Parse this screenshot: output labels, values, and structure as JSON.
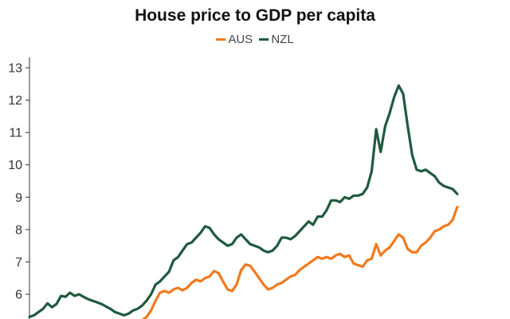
{
  "chart_data": {
    "type": "line",
    "title": "House price to GDP per capita",
    "xlabel": "",
    "ylabel": "",
    "ylim": [
      5.3,
      13.3
    ],
    "yticks": [
      6,
      7,
      8,
      9,
      10,
      11,
      12,
      13
    ],
    "grid": false,
    "legend_position": "top-center",
    "series": [
      {
        "name": "AUS",
        "color": "#f07a1c",
        "points": [
          [
            0.25,
            5.2
          ],
          [
            0.26,
            5.3
          ],
          [
            0.27,
            5.5
          ],
          [
            0.28,
            5.8
          ],
          [
            0.29,
            6.05
          ],
          [
            0.3,
            6.1
          ],
          [
            0.31,
            6.05
          ],
          [
            0.32,
            6.15
          ],
          [
            0.33,
            6.2
          ],
          [
            0.34,
            6.12
          ],
          [
            0.35,
            6.2
          ],
          [
            0.36,
            6.35
          ],
          [
            0.37,
            6.45
          ],
          [
            0.38,
            6.4
          ],
          [
            0.39,
            6.5
          ],
          [
            0.4,
            6.55
          ],
          [
            0.41,
            6.72
          ],
          [
            0.42,
            6.65
          ],
          [
            0.43,
            6.4
          ],
          [
            0.44,
            6.15
          ],
          [
            0.45,
            6.1
          ],
          [
            0.46,
            6.3
          ],
          [
            0.47,
            6.75
          ],
          [
            0.48,
            6.92
          ],
          [
            0.49,
            6.88
          ],
          [
            0.5,
            6.7
          ],
          [
            0.51,
            6.5
          ],
          [
            0.52,
            6.3
          ],
          [
            0.53,
            6.15
          ],
          [
            0.54,
            6.2
          ],
          [
            0.55,
            6.3
          ],
          [
            0.56,
            6.35
          ],
          [
            0.57,
            6.45
          ],
          [
            0.58,
            6.55
          ],
          [
            0.59,
            6.6
          ],
          [
            0.6,
            6.75
          ],
          [
            0.61,
            6.85
          ],
          [
            0.62,
            6.95
          ],
          [
            0.63,
            7.05
          ],
          [
            0.64,
            7.15
          ],
          [
            0.65,
            7.1
          ],
          [
            0.66,
            7.15
          ],
          [
            0.67,
            7.1
          ],
          [
            0.68,
            7.2
          ],
          [
            0.69,
            7.25
          ],
          [
            0.7,
            7.15
          ],
          [
            0.71,
            7.2
          ],
          [
            0.72,
            6.95
          ],
          [
            0.73,
            6.9
          ],
          [
            0.74,
            6.85
          ],
          [
            0.75,
            7.05
          ],
          [
            0.76,
            7.1
          ],
          [
            0.77,
            7.55
          ],
          [
            0.78,
            7.2
          ],
          [
            0.79,
            7.35
          ],
          [
            0.8,
            7.45
          ],
          [
            0.81,
            7.65
          ],
          [
            0.82,
            7.85
          ],
          [
            0.83,
            7.75
          ],
          [
            0.84,
            7.4
          ],
          [
            0.85,
            7.3
          ],
          [
            0.86,
            7.3
          ],
          [
            0.87,
            7.5
          ],
          [
            0.88,
            7.6
          ],
          [
            0.89,
            7.75
          ],
          [
            0.9,
            7.95
          ],
          [
            0.91,
            8.0
          ],
          [
            0.92,
            8.1
          ],
          [
            0.93,
            8.15
          ],
          [
            0.94,
            8.3
          ],
          [
            0.95,
            8.7
          ]
        ]
      },
      {
        "name": "NZL",
        "color": "#1f5a3d",
        "points": [
          [
            0.0,
            5.3
          ],
          [
            0.01,
            5.35
          ],
          [
            0.02,
            5.45
          ],
          [
            0.03,
            5.55
          ],
          [
            0.04,
            5.72
          ],
          [
            0.05,
            5.6
          ],
          [
            0.06,
            5.7
          ],
          [
            0.07,
            5.95
          ],
          [
            0.08,
            5.92
          ],
          [
            0.09,
            6.05
          ],
          [
            0.1,
            5.95
          ],
          [
            0.11,
            6.0
          ],
          [
            0.12,
            5.92
          ],
          [
            0.13,
            5.85
          ],
          [
            0.14,
            5.8
          ],
          [
            0.15,
            5.75
          ],
          [
            0.16,
            5.7
          ],
          [
            0.17,
            5.62
          ],
          [
            0.18,
            5.55
          ],
          [
            0.19,
            5.45
          ],
          [
            0.2,
            5.4
          ],
          [
            0.21,
            5.35
          ],
          [
            0.22,
            5.4
          ],
          [
            0.23,
            5.5
          ],
          [
            0.24,
            5.55
          ],
          [
            0.25,
            5.65
          ],
          [
            0.26,
            5.8
          ],
          [
            0.27,
            6.0
          ],
          [
            0.28,
            6.3
          ],
          [
            0.29,
            6.4
          ],
          [
            0.3,
            6.55
          ],
          [
            0.31,
            6.7
          ],
          [
            0.32,
            7.05
          ],
          [
            0.33,
            7.15
          ],
          [
            0.34,
            7.35
          ],
          [
            0.35,
            7.55
          ],
          [
            0.36,
            7.6
          ],
          [
            0.37,
            7.75
          ],
          [
            0.38,
            7.9
          ],
          [
            0.39,
            8.1
          ],
          [
            0.4,
            8.05
          ],
          [
            0.41,
            7.85
          ],
          [
            0.42,
            7.7
          ],
          [
            0.43,
            7.6
          ],
          [
            0.44,
            7.5
          ],
          [
            0.45,
            7.55
          ],
          [
            0.46,
            7.75
          ],
          [
            0.47,
            7.85
          ],
          [
            0.48,
            7.7
          ],
          [
            0.49,
            7.55
          ],
          [
            0.5,
            7.5
          ],
          [
            0.51,
            7.45
          ],
          [
            0.52,
            7.35
          ],
          [
            0.53,
            7.3
          ],
          [
            0.54,
            7.35
          ],
          [
            0.55,
            7.5
          ],
          [
            0.56,
            7.75
          ],
          [
            0.57,
            7.75
          ],
          [
            0.58,
            7.7
          ],
          [
            0.59,
            7.8
          ],
          [
            0.6,
            7.95
          ],
          [
            0.61,
            8.1
          ],
          [
            0.62,
            8.25
          ],
          [
            0.63,
            8.15
          ],
          [
            0.64,
            8.4
          ],
          [
            0.65,
            8.4
          ],
          [
            0.66,
            8.6
          ],
          [
            0.67,
            8.9
          ],
          [
            0.68,
            8.9
          ],
          [
            0.69,
            8.85
          ],
          [
            0.7,
            9.0
          ],
          [
            0.71,
            8.95
          ],
          [
            0.72,
            9.05
          ],
          [
            0.73,
            9.05
          ],
          [
            0.74,
            9.1
          ],
          [
            0.75,
            9.3
          ],
          [
            0.76,
            9.8
          ],
          [
            0.77,
            11.1
          ],
          [
            0.78,
            10.4
          ],
          [
            0.79,
            11.2
          ],
          [
            0.8,
            11.6
          ],
          [
            0.81,
            12.1
          ],
          [
            0.82,
            12.45
          ],
          [
            0.83,
            12.2
          ],
          [
            0.84,
            11.2
          ],
          [
            0.85,
            10.3
          ],
          [
            0.86,
            9.85
          ],
          [
            0.87,
            9.8
          ],
          [
            0.88,
            9.85
          ],
          [
            0.89,
            9.75
          ],
          [
            0.9,
            9.65
          ],
          [
            0.91,
            9.45
          ],
          [
            0.92,
            9.35
          ],
          [
            0.93,
            9.3
          ],
          [
            0.94,
            9.25
          ],
          [
            0.95,
            9.1
          ]
        ]
      }
    ]
  }
}
